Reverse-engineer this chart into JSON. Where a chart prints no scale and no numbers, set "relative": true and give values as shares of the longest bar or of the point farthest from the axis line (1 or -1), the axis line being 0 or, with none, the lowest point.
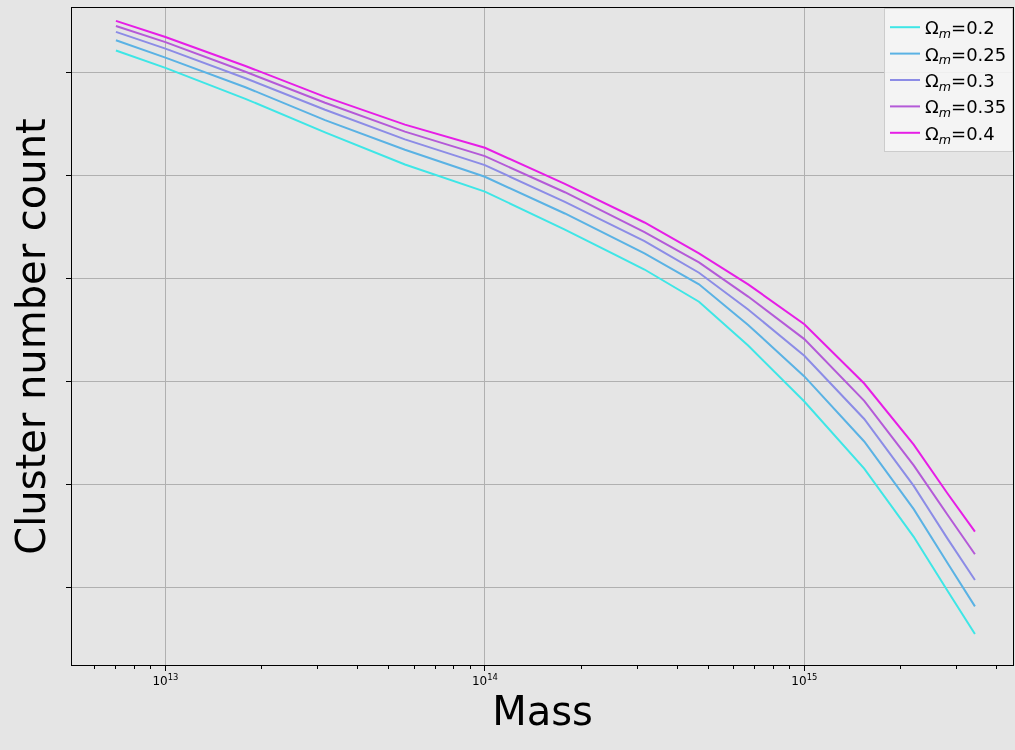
{
  "chart_data": {
    "type": "line",
    "xlabel": "Mass",
    "ylabel": "Cluster number count",
    "relative": true,
    "log": "x",
    "grid": true,
    "legend": "top right",
    "marker": "none",
    "line_style": "solid",
    "xlim": [
      5100000000000.0,
      4500000000000000.0
    ],
    "xticks": [
      {
        "value": 6000000000000.0,
        "label": null
      },
      {
        "value": 7000000000000.0,
        "label": null
      },
      {
        "value": 8000000000000.0,
        "label": null
      },
      {
        "value": 9000000000000.0,
        "label": null
      },
      {
        "value": 10000000000000.0,
        "label": "10$^{13}$"
      },
      {
        "value": 20000000000000.0,
        "label": null
      },
      {
        "value": 30000000000000.0,
        "label": null
      },
      {
        "value": 40000000000000.0,
        "label": null
      },
      {
        "value": 50000000000000.0,
        "label": null
      },
      {
        "value": 60000000000000.0,
        "label": null
      },
      {
        "value": 70000000000000.0,
        "label": null
      },
      {
        "value": 80000000000000.0,
        "label": null
      },
      {
        "value": 90000000000000.0,
        "label": null
      },
      {
        "value": 100000000000000.0,
        "label": "10$^{14}$"
      },
      {
        "value": 200000000000000.0,
        "label": null
      },
      {
        "value": 300000000000000.0,
        "label": null
      },
      {
        "value": 400000000000000.0,
        "label": null
      },
      {
        "value": 500000000000000.0,
        "label": null
      },
      {
        "value": 600000000000000.0,
        "label": null
      },
      {
        "value": 700000000000000.0,
        "label": null
      },
      {
        "value": 800000000000000.0,
        "label": null
      },
      {
        "value": 900000000000000.0,
        "label": null
      },
      {
        "value": 1000000000000000.0,
        "label": "10$^{15}$"
      },
      {
        "value": 2000000000000000.0,
        "label": null
      },
      {
        "value": 3000000000000000.0,
        "label": null
      },
      {
        "value": 4000000000000000.0,
        "label": null
      }
    ],
    "x": [
      7000000000000.0,
      10000000000000.0,
      17800000000000.0,
      31600000000000.0,
      56200000000000.0,
      100000000000000.0,
      178000000000000.0,
      316000000000000.0,
      468000000000000.0,
      667000000000000.0,
      1000000000000000.0,
      1540000000000000.0,
      2200000000000000.0,
      2800000000000000.0,
      3420000000000000.0
    ],
    "series": [
      {
        "name": "Ω$_{m}$=0.2",
        "color": "#3ee6e6",
        "values": [
          0.954,
          0.927,
          0.879,
          0.827,
          0.777,
          0.735,
          0.676,
          0.614,
          0.564,
          0.496,
          0.409,
          0.305,
          0.199,
          0.116,
          0.048
        ]
      },
      {
        "name": "Ω$_{m}$=0.25",
        "color": "#5ab2e4",
        "values": [
          0.97,
          0.943,
          0.897,
          0.846,
          0.8,
          0.758,
          0.701,
          0.639,
          0.591,
          0.528,
          0.448,
          0.347,
          0.242,
          0.159,
          0.091
        ]
      },
      {
        "name": "Ω$_{m}$=0.3",
        "color": "#8c8ce6",
        "values": [
          0.983,
          0.957,
          0.911,
          0.862,
          0.816,
          0.776,
          0.719,
          0.658,
          0.609,
          0.552,
          0.48,
          0.382,
          0.278,
          0.197,
          0.132
        ]
      },
      {
        "name": "Ω$_{m}$=0.35",
        "color": "#b45ad8",
        "values": [
          0.992,
          0.967,
          0.921,
          0.873,
          0.828,
          0.79,
          0.734,
          0.672,
          0.625,
          0.572,
          0.506,
          0.41,
          0.31,
          0.234,
          0.172
        ]
      },
      {
        "name": "Ω$_{m}$=0.4",
        "color": "#e61ee6",
        "values": [
          1.0,
          0.975,
          0.93,
          0.882,
          0.839,
          0.803,
          0.747,
          0.687,
          0.639,
          0.591,
          0.529,
          0.437,
          0.342,
          0.267,
          0.207
        ]
      }
    ]
  }
}
